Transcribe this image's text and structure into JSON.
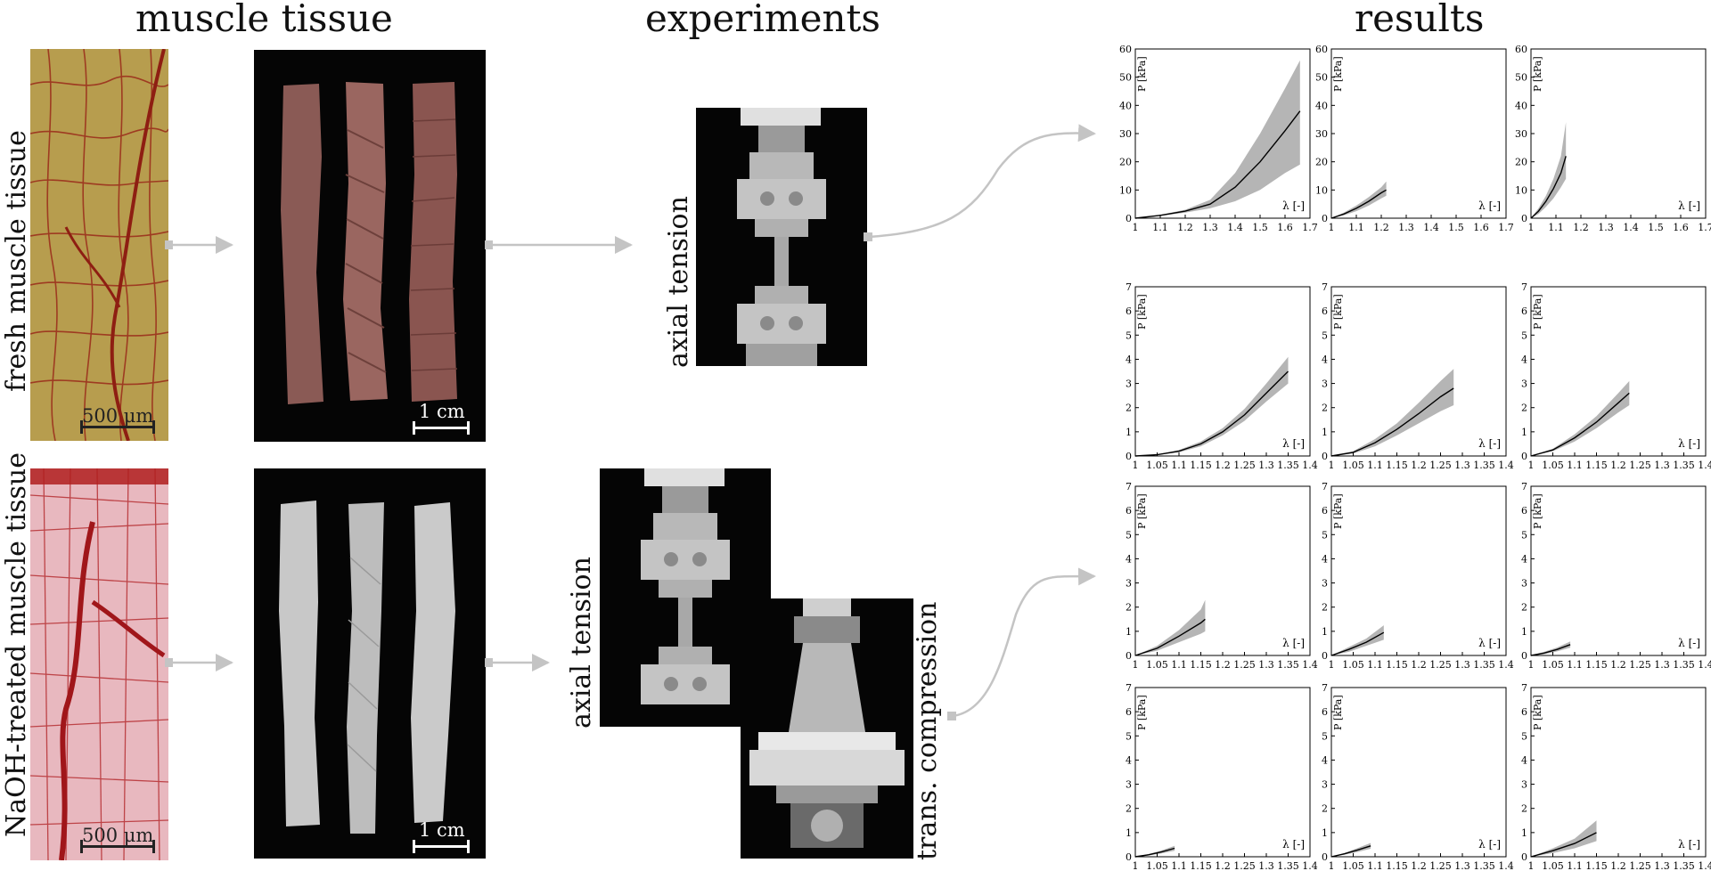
{
  "headings": {
    "tissue": "muscle tissue",
    "experiments": "experiments",
    "results": "results"
  },
  "rows": {
    "fresh": "fresh muscle tissue",
    "naoh": "NaOH-treated muscle tissue"
  },
  "scale": {
    "micro": "500 μm",
    "macro": "1 cm"
  },
  "experiments": {
    "axial1": "axial tension",
    "axial2": "axial tension",
    "compression": "trans. compression"
  },
  "colors": {
    "band": "#b5b5b5",
    "line": "#000000",
    "arrow": "#c4c4c4"
  },
  "chart_data": [
    {
      "type": "line",
      "row": 0,
      "col": 0,
      "ylabel": "P [kPa]",
      "xlabel": "λ [-]",
      "xlim": [
        1,
        1.7
      ],
      "ylim": [
        0,
        60
      ],
      "xticks": [
        1,
        1.1,
        1.2,
        1.3,
        1.4,
        1.5,
        1.6,
        1.7
      ],
      "yticks": [
        0,
        10,
        20,
        30,
        40,
        50,
        60
      ],
      "x": [
        1,
        1.1,
        1.2,
        1.3,
        1.4,
        1.5,
        1.6,
        1.66
      ],
      "values": [
        0,
        1,
        2.5,
        5,
        11,
        20,
        31,
        38
      ],
      "lower": [
        0,
        0.8,
        2,
        3.5,
        6,
        10,
        16,
        19
      ],
      "upper": [
        0,
        1.2,
        3,
        6.5,
        16,
        30,
        46,
        56
      ]
    },
    {
      "type": "line",
      "row": 0,
      "col": 1,
      "ylabel": "P [kPa]",
      "xlabel": "λ [-]",
      "xlim": [
        1,
        1.7
      ],
      "ylim": [
        0,
        60
      ],
      "xticks": [
        1,
        1.1,
        1.2,
        1.3,
        1.4,
        1.5,
        1.6,
        1.7
      ],
      "yticks": [
        0,
        10,
        20,
        30,
        40,
        50,
        60
      ],
      "x": [
        1,
        1.05,
        1.1,
        1.15,
        1.2,
        1.22
      ],
      "values": [
        0,
        1.5,
        3.5,
        6,
        9,
        10
      ],
      "lower": [
        0,
        1,
        2.5,
        4.5,
        7,
        8
      ],
      "upper": [
        0,
        2,
        4.5,
        7.5,
        11,
        13
      ]
    },
    {
      "type": "line",
      "row": 0,
      "col": 2,
      "ylabel": "P [kPa]",
      "xlabel": "λ [-]",
      "xlim": [
        1,
        1.7
      ],
      "ylim": [
        0,
        60
      ],
      "xticks": [
        1,
        1.1,
        1.2,
        1.3,
        1.4,
        1.5,
        1.6,
        1.7
      ],
      "yticks": [
        0,
        10,
        20,
        30,
        40,
        50,
        60
      ],
      "x": [
        1,
        1.03,
        1.06,
        1.09,
        1.12,
        1.14
      ],
      "values": [
        0,
        2.5,
        6,
        10.5,
        16,
        22
      ],
      "lower": [
        0,
        1.5,
        4,
        7,
        11,
        14
      ],
      "upper": [
        0,
        3.5,
        8,
        14,
        22,
        34
      ]
    },
    {
      "type": "line",
      "row": 1,
      "col": 0,
      "ylabel": "P [kPa]",
      "xlabel": "λ [-]",
      "xlim": [
        1,
        1.4
      ],
      "ylim": [
        0,
        7
      ],
      "xticks": [
        1,
        1.05,
        1.1,
        1.15,
        1.2,
        1.25,
        1.3,
        1.35,
        1.4
      ],
      "yticks": [
        0,
        1,
        2,
        3,
        4,
        5,
        6,
        7
      ],
      "x": [
        1,
        1.05,
        1.1,
        1.15,
        1.2,
        1.25,
        1.3,
        1.35
      ],
      "values": [
        0,
        0.05,
        0.2,
        0.5,
        1,
        1.7,
        2.6,
        3.5
      ],
      "lower": [
        0,
        0.04,
        0.15,
        0.4,
        0.85,
        1.45,
        2.25,
        3
      ],
      "upper": [
        0,
        0.06,
        0.25,
        0.6,
        1.15,
        1.95,
        3,
        4.1
      ]
    },
    {
      "type": "line",
      "row": 1,
      "col": 1,
      "ylabel": "P [kPa]",
      "xlabel": "λ [-]",
      "xlim": [
        1,
        1.4
      ],
      "ylim": [
        0,
        7
      ],
      "xticks": [
        1,
        1.05,
        1.1,
        1.15,
        1.2,
        1.25,
        1.3,
        1.35,
        1.4
      ],
      "yticks": [
        0,
        1,
        2,
        3,
        4,
        5,
        6,
        7
      ],
      "x": [
        1,
        1.05,
        1.1,
        1.15,
        1.2,
        1.25,
        1.28
      ],
      "values": [
        0,
        0.15,
        0.55,
        1.1,
        1.75,
        2.45,
        2.8
      ],
      "lower": [
        0,
        0.1,
        0.4,
        0.85,
        1.35,
        1.85,
        2.1
      ],
      "upper": [
        0,
        0.2,
        0.7,
        1.35,
        2.2,
        3.1,
        3.6
      ]
    },
    {
      "type": "line",
      "row": 1,
      "col": 2,
      "ylabel": "P [kPa]",
      "xlabel": "λ [-]",
      "xlim": [
        1,
        1.4
      ],
      "ylim": [
        0,
        7
      ],
      "xticks": [
        1,
        1.05,
        1.1,
        1.15,
        1.2,
        1.25,
        1.3,
        1.35,
        1.4
      ],
      "yticks": [
        0,
        1,
        2,
        3,
        4,
        5,
        6,
        7
      ],
      "x": [
        1,
        1.05,
        1.1,
        1.15,
        1.2,
        1.225
      ],
      "values": [
        0,
        0.25,
        0.75,
        1.4,
        2.2,
        2.6
      ],
      "lower": [
        0,
        0.2,
        0.6,
        1.15,
        1.8,
        2.1
      ],
      "upper": [
        0,
        0.3,
        0.9,
        1.65,
        2.6,
        3.1
      ]
    },
    {
      "type": "line",
      "row": 2,
      "col": 0,
      "ylabel": "P [kPa]",
      "xlabel": "λ [-]",
      "xlim": [
        1,
        1.4
      ],
      "ylim": [
        0,
        7
      ],
      "xticks": [
        1,
        1.05,
        1.1,
        1.15,
        1.2,
        1.25,
        1.3,
        1.35,
        1.4
      ],
      "yticks": [
        0,
        1,
        2,
        3,
        4,
        5,
        6,
        7
      ],
      "x": [
        1,
        1.05,
        1.1,
        1.15,
        1.16
      ],
      "values": [
        0,
        0.3,
        0.8,
        1.35,
        1.5
      ],
      "lower": [
        0,
        0.2,
        0.55,
        0.9,
        1
      ],
      "upper": [
        0,
        0.4,
        1.05,
        1.9,
        2.3
      ]
    },
    {
      "type": "line",
      "row": 2,
      "col": 1,
      "ylabel": "P [kPa]",
      "xlabel": "λ [-]",
      "xlim": [
        1,
        1.4
      ],
      "ylim": [
        0,
        7
      ],
      "xticks": [
        1,
        1.05,
        1.1,
        1.15,
        1.2,
        1.25,
        1.3,
        1.35,
        1.4
      ],
      "yticks": [
        0,
        1,
        2,
        3,
        4,
        5,
        6,
        7
      ],
      "x": [
        1,
        1.04,
        1.08,
        1.12
      ],
      "values": [
        0,
        0.25,
        0.55,
        0.95
      ],
      "lower": [
        0,
        0.15,
        0.4,
        0.65
      ],
      "upper": [
        0,
        0.35,
        0.7,
        1.25
      ]
    },
    {
      "type": "line",
      "row": 2,
      "col": 2,
      "ylabel": "P [kPa]",
      "xlabel": "λ [-]",
      "xlim": [
        1,
        1.4
      ],
      "ylim": [
        0,
        7
      ],
      "xticks": [
        1,
        1.05,
        1.1,
        1.15,
        1.2,
        1.25,
        1.3,
        1.35,
        1.4
      ],
      "yticks": [
        0,
        1,
        2,
        3,
        4,
        5,
        6,
        7
      ],
      "x": [
        1,
        1.03,
        1.06,
        1.09
      ],
      "values": [
        0,
        0.1,
        0.25,
        0.45
      ],
      "lower": [
        0,
        0.05,
        0.17,
        0.32
      ],
      "upper": [
        0,
        0.15,
        0.33,
        0.58
      ]
    },
    {
      "type": "line",
      "row": 3,
      "col": 0,
      "ylabel": "P [kPa]",
      "xlabel": "λ [-]",
      "xlim": [
        1,
        1.4
      ],
      "ylim": [
        0,
        7
      ],
      "xticks": [
        1,
        1.05,
        1.1,
        1.15,
        1.2,
        1.25,
        1.3,
        1.35,
        1.4
      ],
      "yticks": [
        0,
        1,
        2,
        3,
        4,
        5,
        6,
        7
      ],
      "x": [
        1,
        1.03,
        1.06,
        1.09
      ],
      "values": [
        0,
        0.08,
        0.2,
        0.35
      ],
      "lower": [
        0,
        0.05,
        0.14,
        0.25
      ],
      "upper": [
        0,
        0.11,
        0.26,
        0.45
      ]
    },
    {
      "type": "line",
      "row": 3,
      "col": 1,
      "ylabel": "P [kPa]",
      "xlabel": "λ [-]",
      "xlim": [
        1,
        1.4
      ],
      "ylim": [
        0,
        7
      ],
      "xticks": [
        1,
        1.05,
        1.1,
        1.15,
        1.2,
        1.25,
        1.3,
        1.35,
        1.4
      ],
      "yticks": [
        0,
        1,
        2,
        3,
        4,
        5,
        6,
        7
      ],
      "x": [
        1,
        1.03,
        1.06,
        1.09
      ],
      "values": [
        0,
        0.12,
        0.28,
        0.45
      ],
      "lower": [
        0,
        0.08,
        0.2,
        0.33
      ],
      "upper": [
        0,
        0.16,
        0.36,
        0.57
      ]
    },
    {
      "type": "line",
      "row": 3,
      "col": 2,
      "ylabel": "P [kPa]",
      "xlabel": "λ [-]",
      "xlim": [
        1,
        1.4
      ],
      "ylim": [
        0,
        7
      ],
      "xticks": [
        1,
        1.05,
        1.1,
        1.15,
        1.2,
        1.25,
        1.3,
        1.35,
        1.4
      ],
      "yticks": [
        0,
        1,
        2,
        3,
        4,
        5,
        6,
        7
      ],
      "x": [
        1,
        1.05,
        1.1,
        1.15
      ],
      "values": [
        0,
        0.25,
        0.55,
        1
      ],
      "lower": [
        0,
        0.15,
        0.35,
        0.65
      ],
      "upper": [
        0,
        0.35,
        0.75,
        1.5
      ]
    }
  ]
}
